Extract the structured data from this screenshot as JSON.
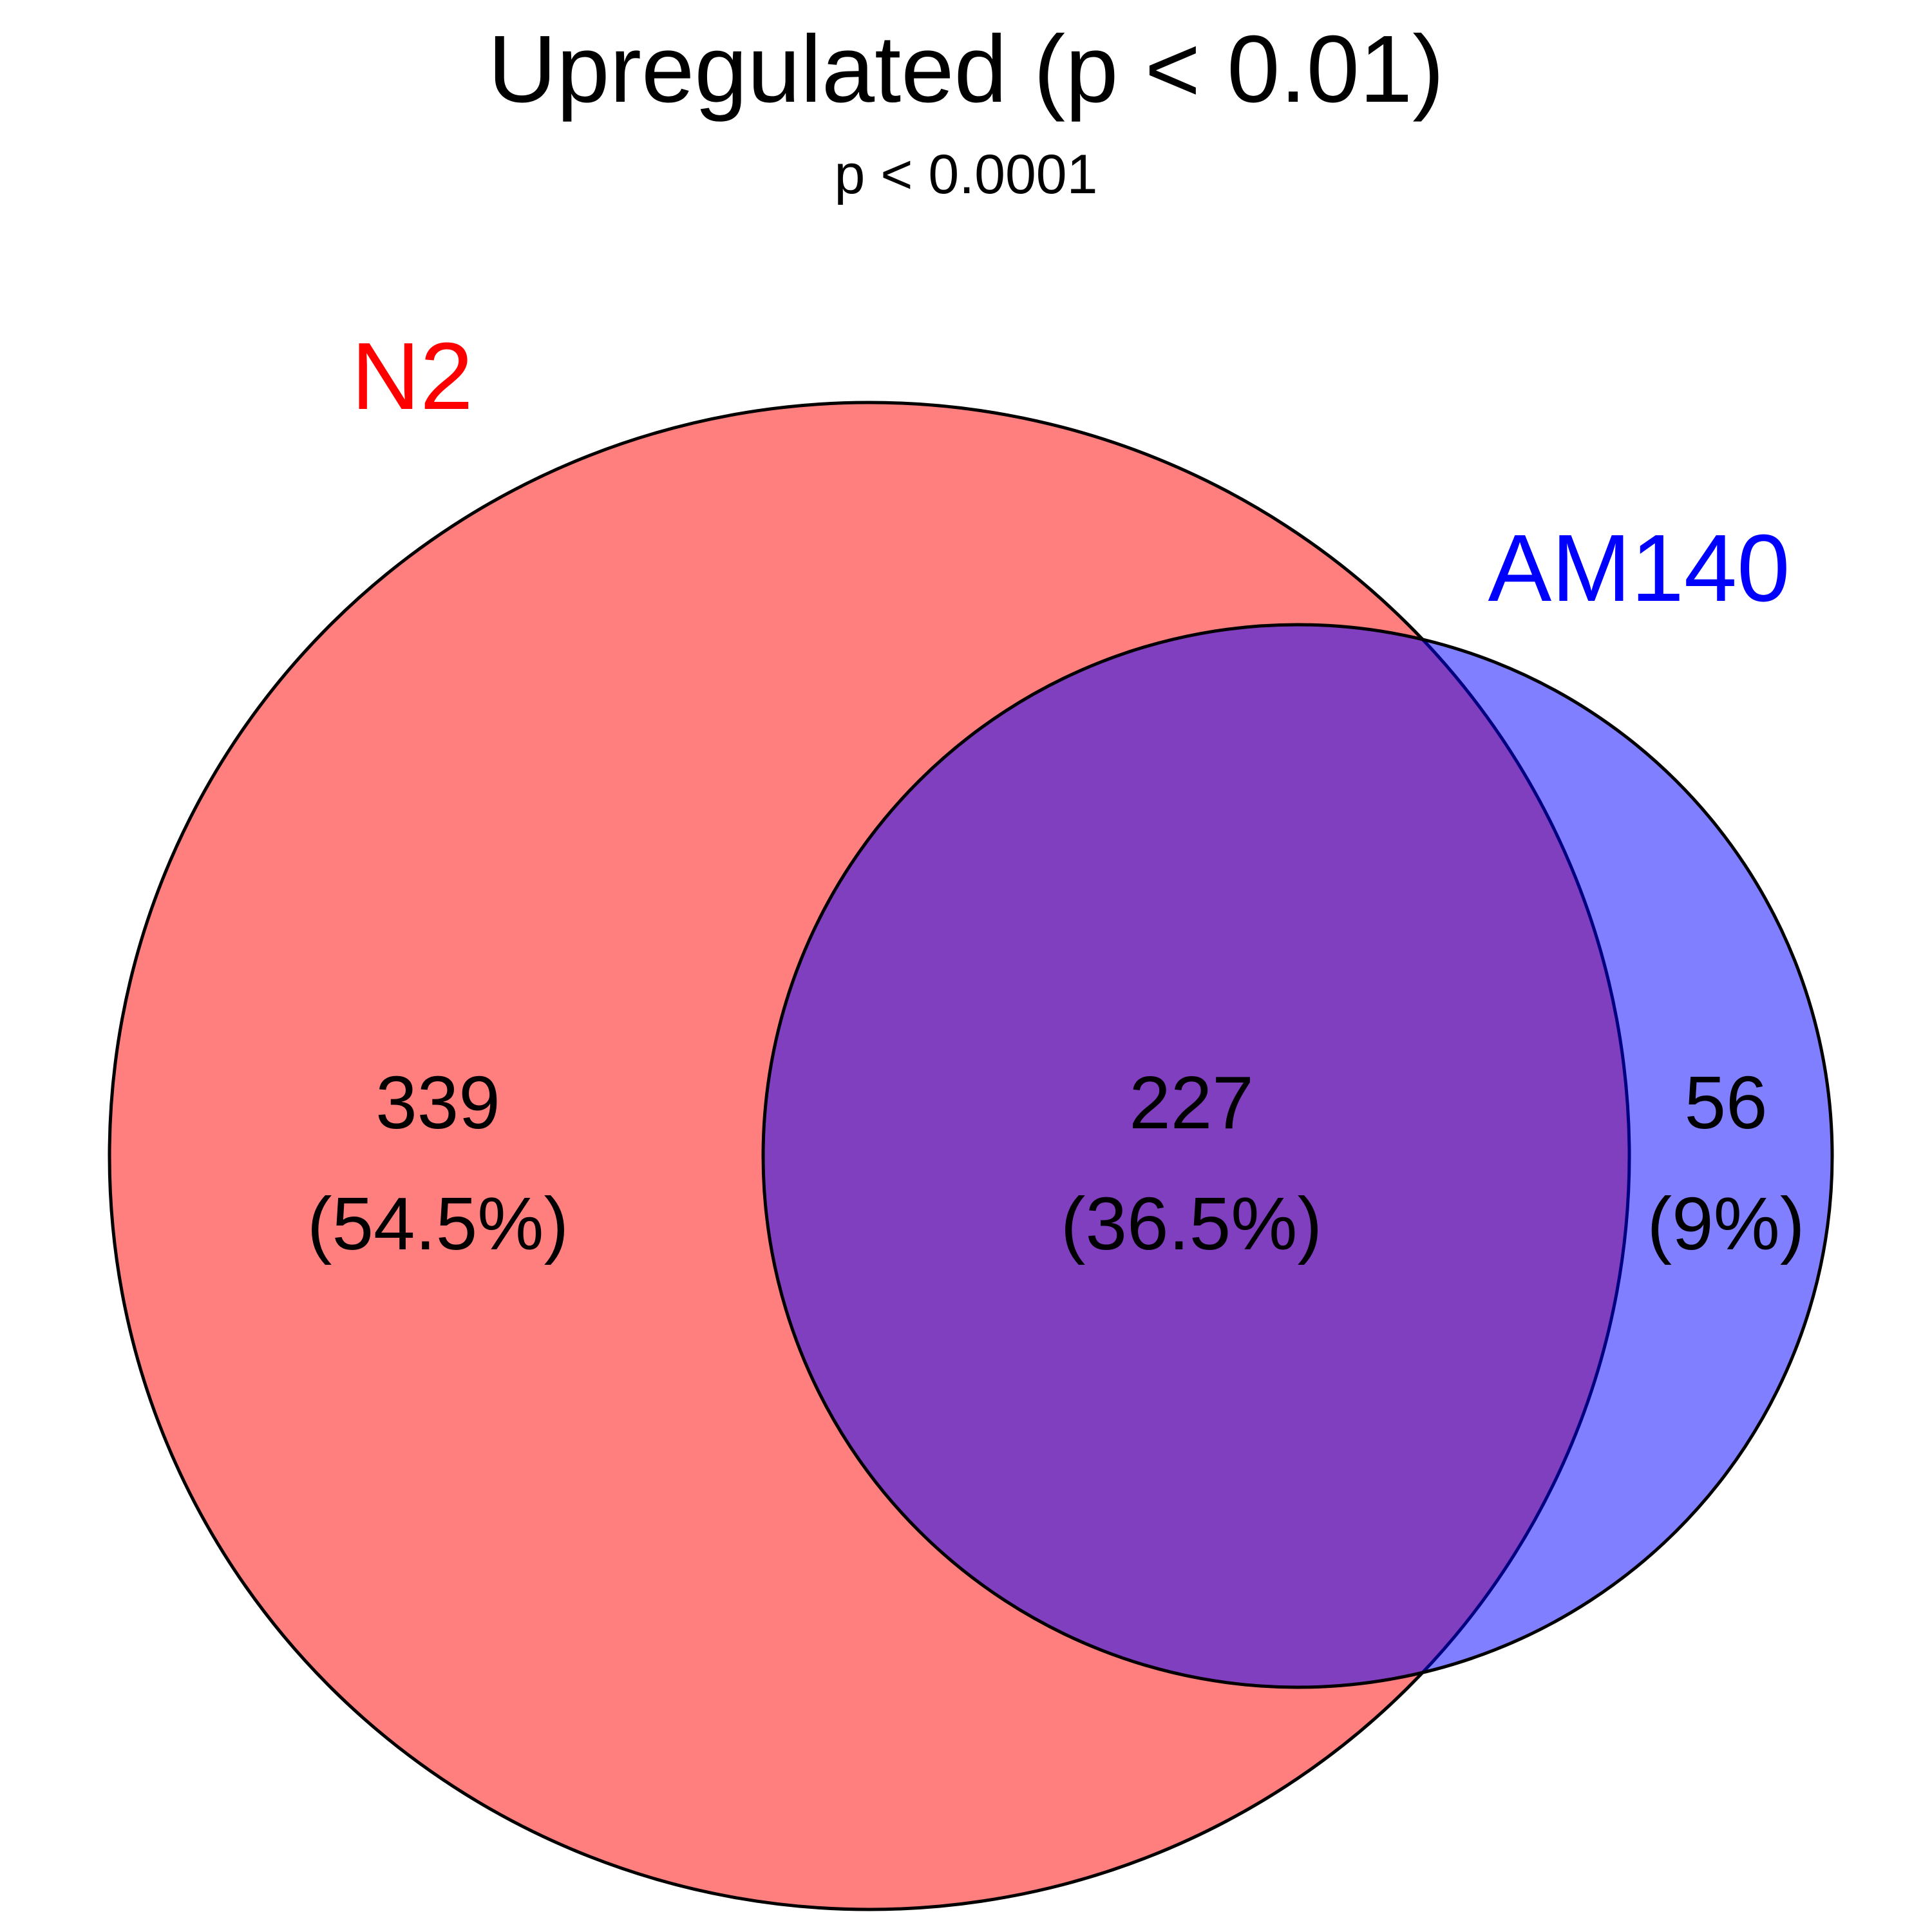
{
  "title": "Upregulated (p < 0.01)",
  "subtitle": "p < 0.0001",
  "sets": [
    {
      "name": "N2",
      "color": "#ff0000",
      "fill": "#ff0000",
      "fill_opacity": 0.5
    },
    {
      "name": "AM140",
      "color": "#0000ff",
      "fill": "#0000ff",
      "fill_opacity": 0.5
    }
  ],
  "regions": [
    {
      "id": "n2-only",
      "count": "339",
      "percent": "(54.5%)"
    },
    {
      "id": "overlap",
      "count": "227",
      "percent": "(36.5%)"
    },
    {
      "id": "am140-only",
      "count": "56",
      "percent": "(9%)"
    }
  ],
  "outline_color": "#000000"
}
